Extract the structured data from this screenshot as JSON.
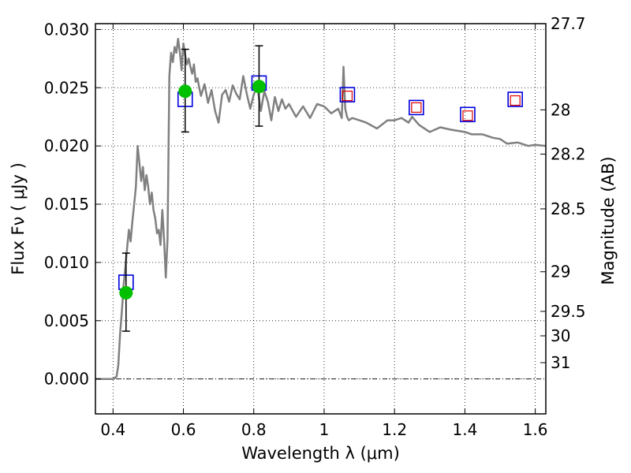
{
  "chart_data": {
    "type": "line",
    "xlabel": "Wavelength  λ (μm)",
    "ylabel": "Flux  Fν  ( μJy )",
    "ylabel_right": "Magnitude (AB)",
    "xlim": [
      0.35,
      1.63
    ],
    "ylim": [
      -0.003,
      0.0305
    ],
    "grid": true,
    "x_ticks": [
      0.4,
      0.6,
      0.8,
      1.0,
      1.2,
      1.4,
      1.6
    ],
    "x_tick_labels": [
      "0.4",
      "0.6",
      "0.8",
      "1",
      "1.2",
      "1.4",
      "1.6"
    ],
    "y_ticks": [
      0.0,
      0.005,
      0.01,
      0.015,
      0.02,
      0.025,
      0.03
    ],
    "y_tick_labels": [
      "0.000",
      "0.005",
      "0.010",
      "0.015",
      "0.020",
      "0.025",
      "0.030"
    ],
    "right_ticks": [
      {
        "flux": 0.0305,
        "label": "27.7"
      },
      {
        "flux": 0.0231,
        "label": "28"
      },
      {
        "flux": 0.0193,
        "label": "28.2"
      },
      {
        "flux": 0.0146,
        "label": "28.5"
      },
      {
        "flux": 0.0092,
        "label": "29"
      },
      {
        "flux": 0.0058,
        "label": "29.5"
      },
      {
        "flux": 0.0037,
        "label": "30"
      },
      {
        "flux": 0.0014,
        "label": "31"
      }
    ],
    "zero_line": 0.0,
    "series": [
      {
        "kind": "line",
        "color": "#808080",
        "x": [
          0.35,
          0.4,
          0.41,
          0.415,
          0.42,
          0.425,
          0.43,
          0.435,
          0.44,
          0.445,
          0.45,
          0.455,
          0.46,
          0.465,
          0.47,
          0.475,
          0.48,
          0.485,
          0.49,
          0.495,
          0.5,
          0.505,
          0.51,
          0.515,
          0.52,
          0.525,
          0.53,
          0.535,
          0.54,
          0.545,
          0.55,
          0.555,
          0.56,
          0.565,
          0.57,
          0.575,
          0.58,
          0.585,
          0.59,
          0.595,
          0.6,
          0.605,
          0.61,
          0.615,
          0.62,
          0.625,
          0.63,
          0.635,
          0.64,
          0.645,
          0.65,
          0.66,
          0.67,
          0.68,
          0.69,
          0.7,
          0.71,
          0.72,
          0.73,
          0.74,
          0.75,
          0.76,
          0.77,
          0.78,
          0.79,
          0.8,
          0.81,
          0.82,
          0.83,
          0.84,
          0.85,
          0.86,
          0.87,
          0.88,
          0.89,
          0.9,
          0.92,
          0.94,
          0.96,
          0.98,
          1.0,
          1.02,
          1.04,
          1.05,
          1.055,
          1.06,
          1.065,
          1.07,
          1.08,
          1.1,
          1.12,
          1.15,
          1.18,
          1.2,
          1.22,
          1.24,
          1.25,
          1.27,
          1.3,
          1.33,
          1.36,
          1.4,
          1.42,
          1.45,
          1.48,
          1.5,
          1.52,
          1.55,
          1.58,
          1.6,
          1.63
        ],
        "y": [
          0.0,
          0.0,
          0.0002,
          0.0012,
          0.0038,
          0.0058,
          0.008,
          0.0096,
          0.0112,
          0.0128,
          0.0118,
          0.0135,
          0.015,
          0.0165,
          0.02,
          0.0185,
          0.017,
          0.0182,
          0.0162,
          0.0175,
          0.0165,
          0.015,
          0.016,
          0.0145,
          0.0138,
          0.0125,
          0.0128,
          0.0115,
          0.0145,
          0.012,
          0.0087,
          0.012,
          0.026,
          0.028,
          0.0272,
          0.0285,
          0.028,
          0.0292,
          0.028,
          0.0265,
          0.0288,
          0.0278,
          0.027,
          0.0275,
          0.0268,
          0.0262,
          0.027,
          0.0255,
          0.0258,
          0.025,
          0.0243,
          0.0253,
          0.0237,
          0.0248,
          0.023,
          0.022,
          0.0244,
          0.0248,
          0.0238,
          0.0252,
          0.0245,
          0.024,
          0.026,
          0.0245,
          0.0232,
          0.0244,
          0.0252,
          0.023,
          0.0247,
          0.0238,
          0.0222,
          0.0242,
          0.023,
          0.024,
          0.0232,
          0.0236,
          0.0225,
          0.0234,
          0.0224,
          0.0236,
          0.0234,
          0.0228,
          0.0232,
          0.0224,
          0.0268,
          0.0232,
          0.0225,
          0.0222,
          0.0224,
          0.0222,
          0.022,
          0.0215,
          0.0222,
          0.0222,
          0.0224,
          0.022,
          0.0225,
          0.0218,
          0.0212,
          0.0216,
          0.0214,
          0.0212,
          0.021,
          0.021,
          0.0207,
          0.0206,
          0.0202,
          0.0203,
          0.02,
          0.0201,
          0.02
        ]
      },
      {
        "kind": "markers",
        "marker": "square-open",
        "color": "#0000dd",
        "x": [
          0.437,
          0.605,
          0.815,
          1.066,
          1.262,
          1.408,
          1.543
        ],
        "y": [
          0.0083,
          0.024,
          0.0254,
          0.0244,
          0.0233,
          0.0227,
          0.024
        ]
      },
      {
        "kind": "markers",
        "marker": "square-open-small",
        "color": "#dd0000",
        "x": [
          1.066,
          1.262,
          1.408,
          1.543
        ],
        "y": [
          0.0243,
          0.0233,
          0.0226,
          0.0239
        ]
      },
      {
        "kind": "errorbar-points",
        "marker": "circle-filled",
        "color": "#00c000",
        "x": [
          0.437,
          0.605,
          0.815
        ],
        "y": [
          0.0074,
          0.0247,
          0.0251
        ],
        "yerr_low": [
          0.0041,
          0.0212,
          0.0217
        ],
        "yerr_high": [
          0.0108,
          0.0283,
          0.0286
        ]
      }
    ]
  }
}
